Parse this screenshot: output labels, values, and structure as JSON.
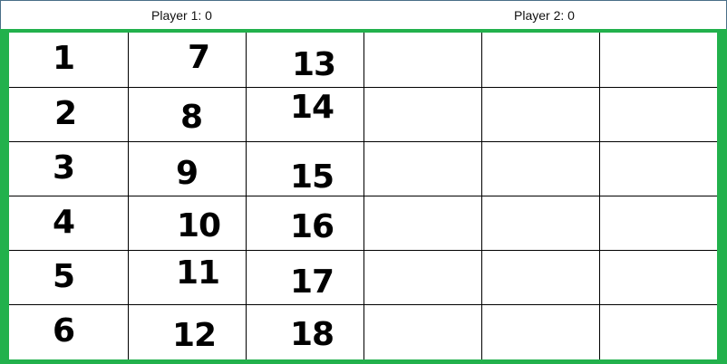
{
  "scoreboard": {
    "player1": "Player 1: 0",
    "player2": "Player 2: 0"
  },
  "colors": {
    "board_border": "#22b14c",
    "grid_line": "#000000",
    "cell_background": "#ffffff"
  },
  "board": {
    "columns": 6,
    "rows": 6,
    "cells": [
      [
        "1",
        "7",
        "13",
        "",
        "",
        ""
      ],
      [
        "2",
        "8",
        "14",
        "",
        "",
        ""
      ],
      [
        "3",
        "9",
        "15",
        "",
        "",
        ""
      ],
      [
        "4",
        "10",
        "16",
        "",
        "",
        ""
      ],
      [
        "5",
        "11",
        "17",
        "",
        "",
        ""
      ],
      [
        "6",
        "12",
        "18",
        "",
        "",
        ""
      ]
    ]
  }
}
